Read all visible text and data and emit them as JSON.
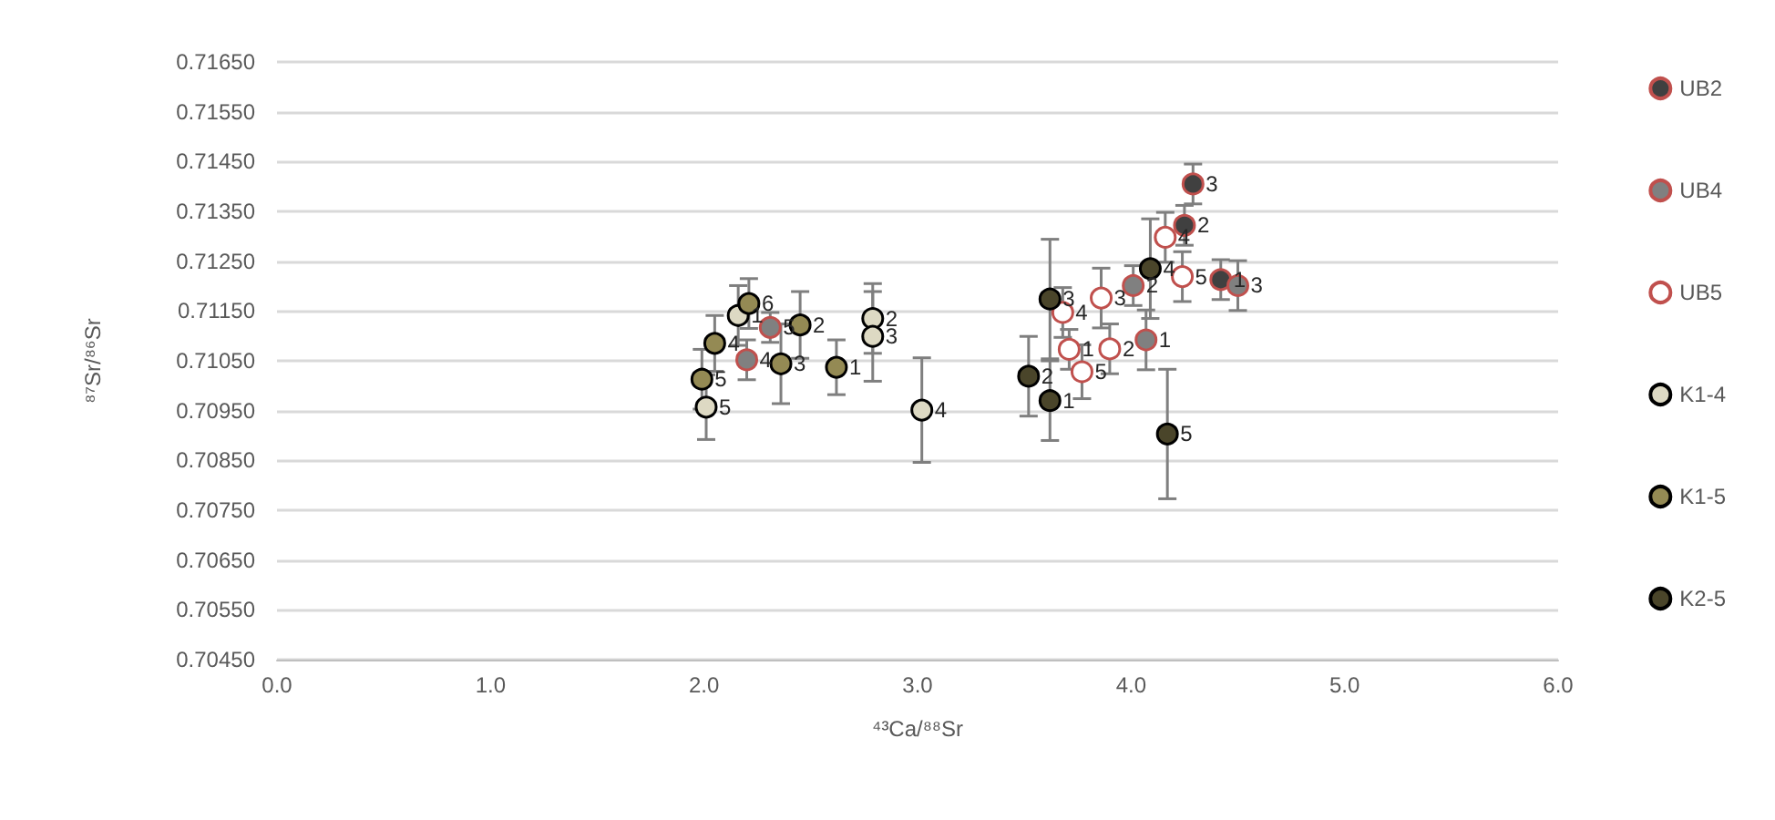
{
  "chart_data": {
    "type": "scatter",
    "xlabel": "⁴³Ca/⁸⁸Sr",
    "ylabel": "⁸⁷Sr/⁸⁶Sr",
    "xlim": [
      0,
      6
    ],
    "xticks": [
      {
        "value": 0,
        "label": "0.0"
      },
      {
        "value": 1,
        "label": "1.0"
      },
      {
        "value": 2,
        "label": "2.0"
      },
      {
        "value": 3,
        "label": "3.0"
      },
      {
        "value": 4,
        "label": "4.0"
      },
      {
        "value": 5,
        "label": "5.0"
      },
      {
        "value": 6,
        "label": "6.0"
      }
    ],
    "ylim": [
      0.7045,
      0.7165
    ],
    "yticks": [
      {
        "value": 0.7045,
        "label": "0.70450"
      },
      {
        "value": 0.7055,
        "label": "0.70550"
      },
      {
        "value": 0.7065,
        "label": "0.70650"
      },
      {
        "value": 0.7075,
        "label": "0.70750"
      },
      {
        "value": 0.7085,
        "label": "0.70850"
      },
      {
        "value": 0.7095,
        "label": "0.70950"
      },
      {
        "value": 0.7105,
        "label": "0.71050"
      },
      {
        "value": 0.7115,
        "label": "0.71150"
      },
      {
        "value": 0.7125,
        "label": "0.71250"
      },
      {
        "value": 0.7135,
        "label": "0.71350"
      },
      {
        "value": 0.7145,
        "label": "0.71450"
      },
      {
        "value": 0.7155,
        "label": "0.71550"
      },
      {
        "value": 0.7165,
        "label": "0.71650"
      }
    ],
    "grid": "y",
    "legend": "right",
    "marker": "circle",
    "series": [
      {
        "name": "UB2",
        "color": "#404040",
        "x": [
          4.42,
          4.25,
          4.29
        ],
        "values": [
          0.71213,
          0.71322,
          0.71405
        ],
        "errors": [
          0.0004,
          0.0004,
          0.0004
        ]
      },
      {
        "name": "UB4",
        "color": "#808080",
        "x": [
          4.07,
          4.01,
          4.5,
          2.2,
          2.31
        ],
        "values": [
          0.71092,
          0.71201,
          0.71201,
          0.71052,
          0.71117
        ],
        "errors": [
          0.0006,
          0.0004,
          0.0005,
          0.0004,
          0.0003
        ]
      },
      {
        "name": "UB5",
        "color": "#ffffff",
        "x": [
          3.71,
          3.9,
          3.86,
          3.68,
          3.77,
          4.16,
          4.24
        ],
        "values": [
          0.71073,
          0.71074,
          0.71176,
          0.71147,
          0.71028,
          0.71298,
          0.71219
        ],
        "errors": [
          0.0004,
          0.0005,
          0.0006,
          0.0005,
          0.00054,
          0.0005,
          0.0005
        ]
      },
      {
        "name": "K1-4",
        "color": "#ddd9c3",
        "x": [
          2.16,
          2.79,
          2.79,
          3.02,
          2.01
        ],
        "values": [
          0.71141,
          0.71135,
          0.71099,
          0.70951,
          0.70957
        ],
        "errors": [
          0.0006,
          0.0007,
          0.0009,
          0.00105,
          0.00065
        ]
      },
      {
        "name": "K1-5",
        "color": "#948a54",
        "x": [
          2.62,
          2.45,
          2.36,
          2.05,
          1.99,
          2.21
        ],
        "values": [
          0.71037,
          0.71122,
          0.71044,
          0.71085,
          0.71013,
          0.71165
        ],
        "errors": [
          0.00055,
          0.00067,
          0.0008,
          0.00056,
          0.0006,
          0.0005
        ]
      },
      {
        "name": "K2-5",
        "color": "#4a452a",
        "x": [
          3.62,
          3.52,
          3.62,
          4.09,
          4.17
        ],
        "values": [
          0.7097,
          0.71019,
          0.71174,
          0.71235,
          0.70903
        ],
        "errors": [
          0.0008,
          0.0008,
          0.0012,
          0.001,
          0.0013
        ]
      }
    ],
    "annotations": [
      {
        "text": "1",
        "x": 4.42,
        "y": 0.71213
      },
      {
        "text": "2",
        "x": 4.25,
        "y": 0.71322
      },
      {
        "text": "3",
        "x": 4.29,
        "y": 0.71405
      },
      {
        "text": "1",
        "x": 4.07,
        "y": 0.71092
      },
      {
        "text": "2",
        "x": 4.01,
        "y": 0.71201
      },
      {
        "text": "3",
        "x": 4.5,
        "y": 0.71201
      },
      {
        "text": "4",
        "x": 2.2,
        "y": 0.71052
      },
      {
        "text": "5",
        "x": 2.31,
        "y": 0.71117
      },
      {
        "text": "1",
        "x": 3.71,
        "y": 0.71073
      },
      {
        "text": "2",
        "x": 3.9,
        "y": 0.71074
      },
      {
        "text": "3",
        "x": 3.86,
        "y": 0.71176
      },
      {
        "text": "4",
        "x": 3.68,
        "y": 0.71147
      },
      {
        "text": "5",
        "x": 3.77,
        "y": 0.71028
      },
      {
        "text": "4",
        "x": 4.16,
        "y": 0.71298
      },
      {
        "text": "5",
        "x": 4.24,
        "y": 0.71219
      },
      {
        "text": "1",
        "x": 2.16,
        "y": 0.71141
      },
      {
        "text": "2",
        "x": 2.79,
        "y": 0.71135
      },
      {
        "text": "3",
        "x": 2.79,
        "y": 0.71099
      },
      {
        "text": "4",
        "x": 3.02,
        "y": 0.70951
      },
      {
        "text": "5",
        "x": 2.01,
        "y": 0.70957
      },
      {
        "text": "1",
        "x": 2.62,
        "y": 0.71037
      },
      {
        "text": "2",
        "x": 2.45,
        "y": 0.71122
      },
      {
        "text": "3",
        "x": 2.36,
        "y": 0.71044
      },
      {
        "text": "4",
        "x": 2.05,
        "y": 0.71085
      },
      {
        "text": "5",
        "x": 1.99,
        "y": 0.71013
      },
      {
        "text": "6",
        "x": 2.21,
        "y": 0.71165
      },
      {
        "text": "1",
        "x": 3.62,
        "y": 0.7097
      },
      {
        "text": "2",
        "x": 3.52,
        "y": 0.71019
      },
      {
        "text": "3",
        "x": 3.62,
        "y": 0.71174
      },
      {
        "text": "4",
        "x": 4.09,
        "y": 0.71235
      },
      {
        "text": "5",
        "x": 4.17,
        "y": 0.70903
      }
    ]
  }
}
